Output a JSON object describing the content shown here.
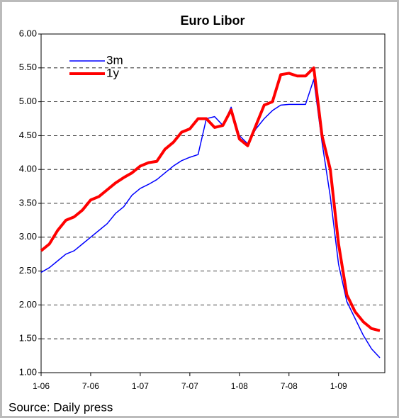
{
  "chart_data": {
    "type": "line",
    "title": "Euro Libor",
    "source": "Source: Daily press",
    "x": [
      0,
      1,
      2,
      3,
      4,
      5,
      6,
      7,
      8,
      9,
      10,
      11,
      12,
      13,
      14,
      15,
      16,
      17,
      18,
      19,
      20,
      21,
      22,
      23,
      24,
      25,
      26,
      27,
      28,
      29,
      30,
      31,
      32,
      33,
      34,
      35,
      36,
      37,
      38,
      39,
      40,
      41
    ],
    "series": [
      {
        "name": "3m",
        "color": "#0000ff",
        "width": 1.5,
        "values": [
          2.48,
          2.55,
          2.65,
          2.75,
          2.8,
          2.9,
          3.0,
          3.1,
          3.2,
          3.35,
          3.45,
          3.62,
          3.72,
          3.78,
          3.85,
          3.95,
          4.05,
          4.13,
          4.18,
          4.22,
          4.75,
          4.78,
          4.65,
          4.92,
          4.5,
          4.38,
          4.6,
          4.75,
          4.87,
          4.95,
          4.96,
          4.96,
          4.96,
          5.33,
          4.4,
          3.6,
          2.6,
          2.05,
          1.8,
          1.55,
          1.35,
          1.22
        ]
      },
      {
        "name": "1y",
        "color": "#ff0000",
        "width": 4,
        "values": [
          2.8,
          2.9,
          3.1,
          3.25,
          3.3,
          3.4,
          3.55,
          3.6,
          3.7,
          3.8,
          3.88,
          3.95,
          4.05,
          4.1,
          4.12,
          4.3,
          4.4,
          4.55,
          4.6,
          4.75,
          4.75,
          4.62,
          4.65,
          4.88,
          4.45,
          4.35,
          4.65,
          4.95,
          5.0,
          5.4,
          5.42,
          5.38,
          5.38,
          5.5,
          4.5,
          4.0,
          2.9,
          2.15,
          1.9,
          1.75,
          1.65,
          1.62
        ]
      }
    ],
    "xlim": [
      0,
      41.6
    ],
    "xticks": [
      {
        "value": 0,
        "label": "1-06"
      },
      {
        "value": 6,
        "label": "7-06"
      },
      {
        "value": 12,
        "label": "1-07"
      },
      {
        "value": 18,
        "label": "7-07"
      },
      {
        "value": 24,
        "label": "1-08"
      },
      {
        "value": 30,
        "label": "7-08"
      },
      {
        "value": 36,
        "label": "1-09"
      }
    ],
    "ylim": [
      1,
      6
    ],
    "yticks": [
      {
        "value": 1,
        "label": "1.00"
      },
      {
        "value": 1.5,
        "label": "1.50"
      },
      {
        "value": 2,
        "label": "2.00"
      },
      {
        "value": 2.5,
        "label": "2.50"
      },
      {
        "value": 3,
        "label": "3.00"
      },
      {
        "value": 3.5,
        "label": "3.50"
      },
      {
        "value": 4,
        "label": "4.00"
      },
      {
        "value": 4.5,
        "label": "4.50"
      },
      {
        "value": 5,
        "label": "5.00"
      },
      {
        "value": 5.5,
        "label": "5.50"
      },
      {
        "value": 6,
        "label": "6.00"
      }
    ],
    "grid": true,
    "legend": "upper left"
  }
}
